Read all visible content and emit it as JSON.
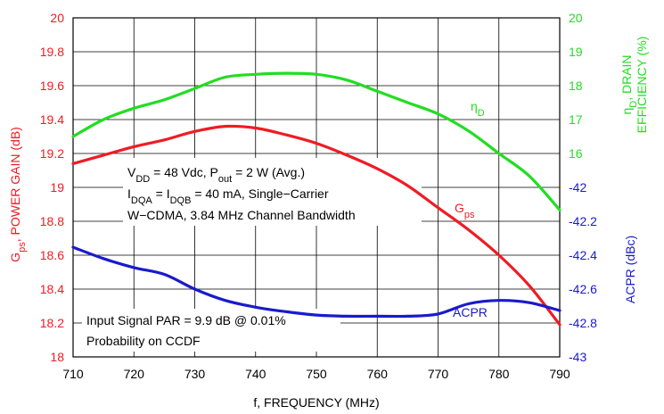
{
  "chart_data": {
    "type": "line",
    "xlabel": "f, FREQUENCY (MHz)",
    "x_ticks": [
      "710",
      "720",
      "730",
      "740",
      "750",
      "760",
      "770",
      "780",
      "790"
    ],
    "xlim": [
      710,
      790
    ],
    "axes": {
      "left": {
        "label_parts": [
          "G",
          "ps",
          ", POWER GAIN (dB)"
        ],
        "color": "#ee1c24",
        "range": [
          18,
          20
        ],
        "ticks": [
          "20",
          "19.8",
          "19.6",
          "19.4",
          "19.2",
          "19",
          "18.8",
          "18.6",
          "18.4",
          "18.2",
          "18"
        ]
      },
      "right_top": {
        "label_line1_parts": [
          "η",
          "D",
          ", DRAIN"
        ],
        "label_line2": "EFFICIENCY (%)",
        "color": "#22dd22",
        "range": [
          14,
          20
        ],
        "ticks": [
          "20",
          "19",
          "18",
          "17",
          "16"
        ]
      },
      "right_bottom": {
        "label": "ACPR (dBc)",
        "color": "#1a1acc",
        "range": [
          -43,
          -40
        ],
        "ticks": [
          "-42",
          "-42.2",
          "-42.4",
          "-42.6",
          "-42.8",
          "-43"
        ]
      }
    },
    "series": [
      {
        "name_parts": [
          "G",
          "ps"
        ],
        "color": "#ee1c24",
        "axis": "left",
        "x": [
          710,
          715,
          720,
          725,
          730,
          735,
          740,
          745,
          750,
          755,
          760,
          765,
          770,
          775,
          780,
          785,
          790
        ],
        "y": [
          19.14,
          19.19,
          19.24,
          19.28,
          19.33,
          19.36,
          19.35,
          19.31,
          19.26,
          19.19,
          19.11,
          19.01,
          18.88,
          18.75,
          18.6,
          18.42,
          18.19
        ]
      },
      {
        "name_parts": [
          "η",
          "D"
        ],
        "color": "#22dd22",
        "axis": "right_top",
        "x": [
          710,
          715,
          720,
          725,
          730,
          735,
          740,
          745,
          750,
          755,
          760,
          765,
          770,
          775,
          780,
          785,
          790
        ],
        "y": [
          17.9,
          18.2,
          18.4,
          18.55,
          18.75,
          18.95,
          19.0,
          19.02,
          19.0,
          18.9,
          18.7,
          18.5,
          18.3,
          18.0,
          17.6,
          17.2,
          16.6
        ]
      },
      {
        "name": "ACPR",
        "color": "#1a1acc",
        "axis": "right_bottom",
        "x": [
          710,
          715,
          720,
          725,
          730,
          735,
          740,
          745,
          750,
          755,
          760,
          765,
          770,
          775,
          780,
          785,
          790
        ],
        "y": [
          -42.03,
          -42.13,
          -42.21,
          -42.27,
          -42.4,
          -42.5,
          -42.56,
          -42.6,
          -42.63,
          -42.64,
          -42.64,
          -42.64,
          -42.62,
          -42.53,
          -42.5,
          -42.52,
          -42.59
        ]
      }
    ],
    "annotations": {
      "conditions": {
        "line1_parts": [
          "V",
          "DD",
          " = 48 Vdc, P",
          "out",
          " = 2 W (Avg.)"
        ],
        "line2_parts": [
          "I",
          "DQA",
          " = I",
          "DQB",
          " = 40 mA, Single−Carrier"
        ],
        "line3": "W−CDMA, 3.84 MHz Channel Bandwidth"
      },
      "signal": {
        "line1": "Input Signal PAR = 9.9 dB @ 0.01%",
        "line2": "Probability on CCDF"
      }
    },
    "grid": true
  }
}
